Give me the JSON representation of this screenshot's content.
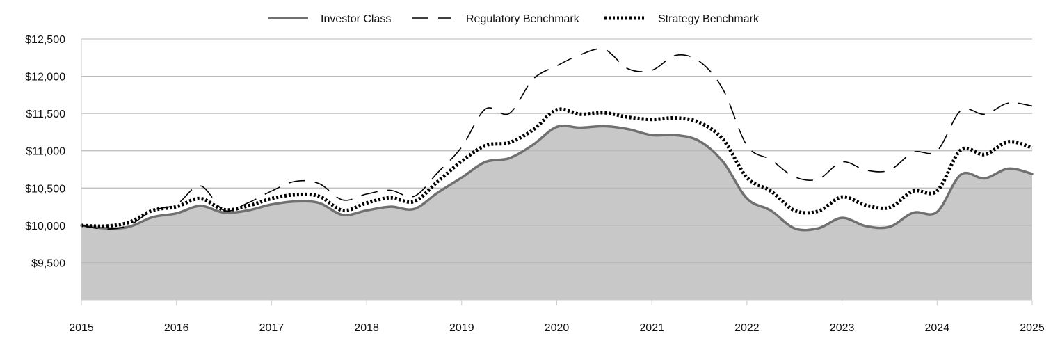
{
  "chart_data": {
    "type": "area",
    "title": "",
    "xlabel": "",
    "ylabel": "",
    "xlim": [
      2015,
      2025
    ],
    "ylim": [
      9000,
      12500
    ],
    "x_ticks": [
      "2015",
      "2016",
      "2017",
      "2018",
      "2019",
      "2020",
      "2021",
      "2022",
      "2023",
      "2024",
      "2025"
    ],
    "y_ticks": [
      {
        "value": 9500,
        "label": "$9,500"
      },
      {
        "value": 10000,
        "label": "$10,000"
      },
      {
        "value": 10500,
        "label": "$10,500"
      },
      {
        "value": 11000,
        "label": "$11,000"
      },
      {
        "value": 11500,
        "label": "$11,500"
      },
      {
        "value": 12000,
        "label": "$12,000"
      },
      {
        "value": 12500,
        "label": "$12,500"
      }
    ],
    "grid": "horizontal",
    "legend_position": "top",
    "x": [
      2015.0,
      2015.25,
      2015.5,
      2015.75,
      2016.0,
      2016.25,
      2016.5,
      2016.75,
      2017.0,
      2017.25,
      2017.5,
      2017.75,
      2018.0,
      2018.25,
      2018.5,
      2018.75,
      2019.0,
      2019.25,
      2019.5,
      2019.75,
      2020.0,
      2020.25,
      2020.5,
      2020.75,
      2021.0,
      2021.25,
      2021.5,
      2021.75,
      2022.0,
      2022.25,
      2022.5,
      2022.75,
      2023.0,
      2023.25,
      2023.5,
      2023.75,
      2024.0,
      2024.25,
      2024.5,
      2024.75,
      2025.0
    ],
    "series": [
      {
        "name": "Investor Class",
        "style": "solid",
        "color": "#707070",
        "fill": "#c8c8c8",
        "values": [
          10000,
          9960,
          9980,
          10110,
          10160,
          10260,
          10170,
          10200,
          10280,
          10320,
          10300,
          10140,
          10200,
          10250,
          10220,
          10440,
          10640,
          10850,
          10900,
          11080,
          11320,
          11310,
          11330,
          11290,
          11210,
          11210,
          11130,
          10850,
          10360,
          10200,
          9960,
          9960,
          10100,
          9990,
          9980,
          10170,
          10180,
          10680,
          10630,
          10760,
          10690
        ]
      },
      {
        "name": "Regulatory Benchmark",
        "style": "dashed",
        "color": "#000000",
        "values": [
          10000,
          9950,
          10000,
          10200,
          10280,
          10530,
          10200,
          10300,
          10460,
          10590,
          10560,
          10340,
          10420,
          10470,
          10390,
          10710,
          11050,
          11560,
          11500,
          11960,
          12140,
          12290,
          12360,
          12100,
          12080,
          12280,
          12200,
          11820,
          11070,
          10880,
          10650,
          10620,
          10850,
          10740,
          10740,
          10980,
          11000,
          11540,
          11490,
          11640,
          11600
        ]
      },
      {
        "name": "Strategy Benchmark",
        "style": "dotted",
        "color": "#000000",
        "values": [
          10000,
          9990,
          10040,
          10200,
          10250,
          10360,
          10210,
          10260,
          10360,
          10410,
          10390,
          10200,
          10300,
          10370,
          10320,
          10590,
          10860,
          11070,
          11110,
          11280,
          11550,
          11490,
          11510,
          11450,
          11420,
          11440,
          11380,
          11150,
          10640,
          10460,
          10200,
          10190,
          10380,
          10270,
          10240,
          10460,
          10460,
          11010,
          10950,
          11120,
          11040
        ]
      }
    ]
  }
}
